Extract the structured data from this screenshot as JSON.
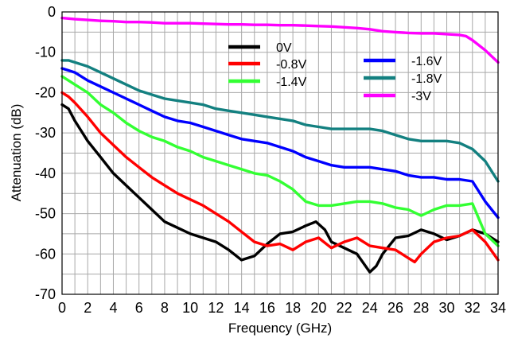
{
  "chart_data": {
    "type": "line",
    "xlabel": "Frequency (GHz)",
    "ylabel": "Attenuation (dB)",
    "xlim": [
      0,
      34
    ],
    "ylim": [
      -70,
      0
    ],
    "xticks": [
      0,
      2,
      4,
      6,
      8,
      10,
      12,
      14,
      16,
      18,
      20,
      22,
      24,
      26,
      28,
      30,
      32,
      34
    ],
    "yticks": [
      0,
      -10,
      -20,
      -30,
      -40,
      -50,
      -60,
      -70
    ],
    "grid": true,
    "legend_position": "top-center",
    "series": [
      {
        "name": "0V",
        "color": "#000000",
        "x": [
          0,
          0.5,
          1,
          2,
          3,
          4,
          5,
          6,
          7,
          8,
          9,
          10,
          11,
          12,
          13,
          14,
          15,
          16,
          17,
          18,
          19,
          19.8,
          20.5,
          21,
          22,
          23,
          24,
          24.5,
          25,
          26,
          27,
          28,
          29,
          30,
          31,
          32,
          33,
          34
        ],
        "y": [
          -23,
          -24,
          -27,
          -32,
          -36,
          -40,
          -43,
          -46,
          -49,
          -52,
          -53.5,
          -55,
          -56,
          -57,
          -59,
          -61.5,
          -60.5,
          -57.5,
          -55,
          -54.5,
          -53,
          -52,
          -54,
          -57,
          -58.5,
          -60,
          -64.5,
          -63,
          -60,
          -56,
          -55.5,
          -54,
          -55,
          -56.5,
          -55.5,
          -54,
          -55,
          -57
        ]
      },
      {
        "name": "-0.8V",
        "color": "#ff0000",
        "x": [
          0,
          0.5,
          1,
          2,
          3,
          4,
          5,
          6,
          7,
          8,
          9,
          10,
          11,
          12,
          13,
          14,
          15,
          16,
          17,
          18,
          19,
          20,
          21,
          22,
          23,
          24,
          25,
          26,
          27,
          27.5,
          28,
          29,
          30,
          31,
          32,
          33,
          34
        ],
        "y": [
          -20,
          -21,
          -22.5,
          -26,
          -30,
          -33,
          -36,
          -38.5,
          -41,
          -43,
          -45,
          -46.5,
          -48,
          -50,
          -52,
          -54.5,
          -57,
          -58,
          -57.5,
          -59,
          -57,
          -56,
          -58.5,
          -57,
          -56,
          -58,
          -58.5,
          -59,
          -61,
          -62,
          -60,
          -57,
          -56,
          -55.5,
          -54,
          -57,
          -61.5
        ]
      },
      {
        "name": "-1.4V",
        "color": "#33ff33",
        "x": [
          0,
          0.5,
          1,
          2,
          3,
          4,
          5,
          6,
          7,
          8,
          9,
          10,
          11,
          12,
          13,
          14,
          15,
          16,
          17,
          18,
          19,
          20,
          21,
          22,
          23,
          24,
          25,
          26,
          27,
          28,
          29,
          30,
          31,
          32,
          33,
          34
        ],
        "y": [
          -16,
          -17,
          -18,
          -20,
          -23,
          -25,
          -27.5,
          -29.5,
          -31,
          -32,
          -33.5,
          -34.5,
          -36,
          -37,
          -38,
          -39,
          -40,
          -40.5,
          -42,
          -44,
          -47,
          -48,
          -48,
          -47.5,
          -47,
          -47,
          -47.5,
          -48.5,
          -49,
          -50.5,
          -49,
          -48,
          -48,
          -47.5,
          -55,
          -58
        ]
      },
      {
        "name": "-1.6V",
        "color": "#0000ff",
        "x": [
          0,
          0.5,
          1,
          2,
          3,
          4,
          5,
          6,
          7,
          8,
          9,
          10,
          11,
          12,
          13,
          14,
          15,
          16,
          17,
          18,
          19,
          20,
          21,
          22,
          23,
          24,
          25,
          26,
          27,
          28,
          29,
          30,
          31,
          32,
          33,
          34
        ],
        "y": [
          -14,
          -14.5,
          -15,
          -17,
          -18.5,
          -20,
          -21.5,
          -23,
          -24.5,
          -26,
          -27,
          -27.5,
          -28.5,
          -29.5,
          -30.5,
          -31.5,
          -32,
          -32.5,
          -33.5,
          -34.5,
          -36,
          -37,
          -38,
          -38.5,
          -38.5,
          -38.5,
          -39,
          -39.5,
          -40.5,
          -41,
          -41,
          -41.5,
          -41.5,
          -42,
          -47,
          -51
        ]
      },
      {
        "name": "-1.8V",
        "color": "#138080",
        "x": [
          0,
          0.5,
          1,
          2,
          3,
          4,
          5,
          6,
          7,
          8,
          9,
          10,
          11,
          12,
          13,
          14,
          15,
          16,
          17,
          18,
          19,
          20,
          21,
          22,
          23,
          24,
          25,
          26,
          27,
          28,
          29,
          30,
          31,
          32,
          33,
          34
        ],
        "y": [
          -12,
          -12,
          -12.5,
          -13.5,
          -15,
          -16.5,
          -18,
          -19.5,
          -20.5,
          -21.5,
          -22,
          -22.5,
          -23,
          -24,
          -24.5,
          -25,
          -25.5,
          -26,
          -26.5,
          -27,
          -28,
          -28.5,
          -29,
          -29,
          -29,
          -29,
          -29.5,
          -30.5,
          -31.5,
          -32,
          -32,
          -32,
          -32.5,
          -34,
          -37,
          -42
        ]
      },
      {
        "name": "-3V",
        "color": "#ff00ff",
        "x": [
          0,
          1,
          2,
          3,
          4,
          5,
          6,
          7,
          8,
          9,
          10,
          11,
          12,
          13,
          14,
          15,
          16,
          17,
          18,
          19,
          20,
          21,
          22,
          23,
          24,
          25,
          26,
          27,
          28,
          29,
          30,
          31,
          31.5,
          32,
          33,
          34
        ],
        "y": [
          -1.5,
          -1.8,
          -2,
          -2.2,
          -2.3,
          -2.5,
          -2.5,
          -2.6,
          -2.8,
          -2.8,
          -2.8,
          -2.9,
          -3,
          -3.1,
          -3.1,
          -3.2,
          -3.2,
          -3.3,
          -3.3,
          -3.4,
          -3.5,
          -3.6,
          -3.8,
          -4,
          -4.3,
          -4.8,
          -5,
          -5.2,
          -5.3,
          -5.3,
          -5.5,
          -5.7,
          -6,
          -7,
          -9.5,
          -12.5
        ]
      }
    ]
  }
}
